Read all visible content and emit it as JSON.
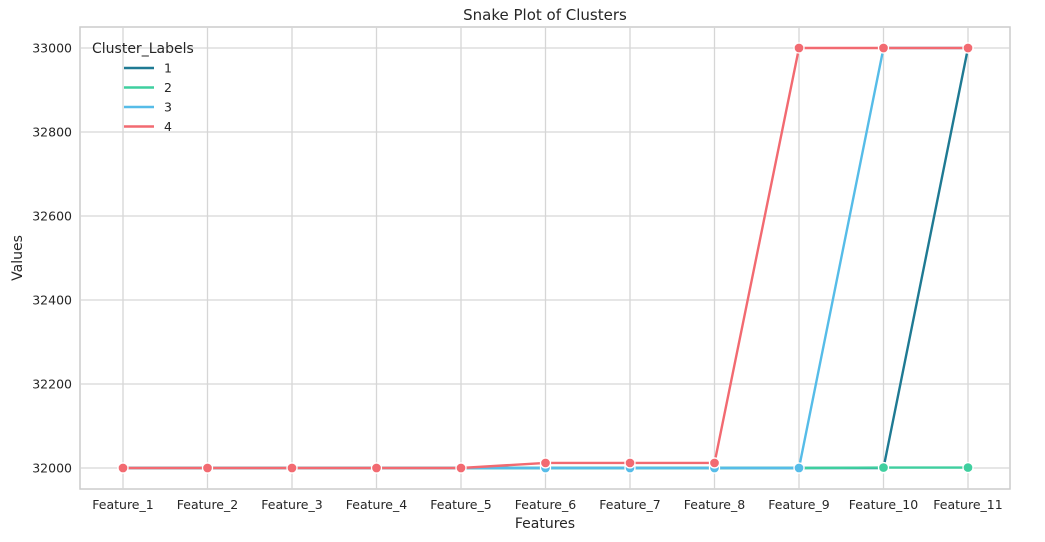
{
  "chart_data": {
    "type": "line",
    "title": "Snake Plot of Clusters",
    "xlabel": "Features",
    "ylabel": "Values",
    "categories": [
      "Feature_1",
      "Feature_2",
      "Feature_3",
      "Feature_4",
      "Feature_5",
      "Feature_6",
      "Feature_7",
      "Feature_8",
      "Feature_9",
      "Feature_10",
      "Feature_11"
    ],
    "ylim": [
      31950,
      33050
    ],
    "yticks": [
      32000,
      32200,
      32400,
      32600,
      32800,
      33000
    ],
    "grid": true,
    "legend": {
      "title": "Cluster_Labels",
      "placement": "top-left"
    },
    "series": [
      {
        "name": "1",
        "color": "#1f7a93",
        "values": [
          32000,
          32000,
          32000,
          32000,
          32000,
          32000,
          32000,
          32000,
          32000,
          32000,
          33000
        ]
      },
      {
        "name": "2",
        "color": "#3fcf9f",
        "values": [
          32000,
          32000,
          32000,
          32000,
          32000,
          32000,
          32000,
          32000,
          32000,
          32001,
          32001
        ]
      },
      {
        "name": "3",
        "color": "#56bce8",
        "values": [
          32000,
          32000,
          32000,
          32000,
          32000,
          32000,
          32000,
          32000,
          32000,
          33000,
          33000
        ]
      },
      {
        "name": "4",
        "color": "#f26a71",
        "values": [
          32000,
          32000,
          32000,
          32000,
          32000,
          32012,
          32012,
          32012,
          33000,
          33000,
          33000
        ]
      }
    ]
  }
}
